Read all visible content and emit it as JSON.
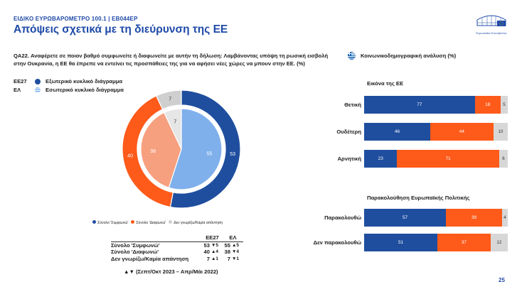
{
  "header": {
    "kicker": "ΕΙΔΙΚΟ ΕΥΡΩΒΑΡΟΜΕΤΡΟ 100.1 | EB044EP",
    "title": "Απόψεις σχετικά με τη διεύρυνση της ΕΕ",
    "logo_text": "Ευρωπαϊκό Κοινοβούλιο"
  },
  "question": "QA22. Αναφέρετε σε ποιον βαθμό συμφωνείτε ή διαφωνείτε με αυτήν τη δήλωση: Λαμβάνοντας υπόψη τη ρωσική εισβολή στην Ουκρανία, η ΕΕ θα έπρεπε να εντείνει τις προσπάθειες της για να αφήσει νέες χώρες να μπουν στην ΕΕ. (%)",
  "ring_legend": [
    {
      "code": "ΕΕ27",
      "text": "Εξωτερικό κυκλικό διάγραμμα"
    },
    {
      "code": "ΕΛ",
      "text": "Εσωτερικό κυκλικό διάγραμμα"
    }
  ],
  "socio_title": "Κοινωνικοδημογραφική ανάλυση (%)",
  "pie_legend": [
    "Σύνολο 'Συμφωνώ'",
    "Σύνολο 'Διαφωνώ'",
    "Δεν γνωρίζω/Καμία απάντηση"
  ],
  "colors": {
    "agree": "#1f4e9e",
    "disagree": "#fe5a1a",
    "dk": "#cfcfcf",
    "agree_inner": "#7fb0ec",
    "disagree_inner": "#f7a07f",
    "dk_inner": "#e6e6e6"
  },
  "table": {
    "headers": [
      "ΕΕ27",
      "ΕΛ"
    ],
    "rows": [
      {
        "label": "Σύνολο 'Συμφωνώ'",
        "eu": "53",
        "eu_trend": "▼5",
        "gr": "55",
        "gr_trend": "▲5"
      },
      {
        "label": "Σύνολο 'Διαφωνώ'",
        "eu": "40",
        "eu_trend": "▲4",
        "gr": "38",
        "gr_trend": "▼4"
      },
      {
        "label": "Δεν γνωρίζω/Καμία απάντηση",
        "eu": "7",
        "eu_trend": "▲1",
        "gr": "7",
        "gr_trend": "▼1"
      }
    ],
    "footnote": "▲▼ (Σεπτ/Οκτ 2023 – Απρ/Μάι 2022)"
  },
  "chart_data": [
    {
      "type": "pie",
      "subtype": "nested-donut",
      "series": [
        {
          "name": "ΕΕ27",
          "ring": "outer",
          "categories": [
            "Σύνολο 'Συμφωνώ'",
            "Σύνολο 'Διαφωνώ'",
            "Δεν γνωρίζω/Καμία απάντηση"
          ],
          "values": [
            53,
            40,
            7
          ]
        },
        {
          "name": "ΕΛ",
          "ring": "inner",
          "categories": [
            "Σύνολο 'Συμφωνώ'",
            "Σύνολο 'Διαφωνώ'",
            "Δεν γνωρίζω/Καμία απάντηση"
          ],
          "values": [
            55,
            38,
            7
          ]
        }
      ]
    },
    {
      "type": "bar",
      "orientation": "horizontal-stacked",
      "title": "Εικόνα της ΕΕ",
      "categories": [
        "Θετική",
        "Ουδέτερη",
        "Αρνητική"
      ],
      "series": [
        {
          "name": "Σύνολο 'Συμφωνώ'",
          "values": [
            77,
            46,
            23
          ]
        },
        {
          "name": "Σύνολο 'Διαφωνώ'",
          "values": [
            18,
            44,
            71
          ]
        },
        {
          "name": "Δεν γνωρίζω/Καμία απάντηση",
          "values": [
            5,
            10,
            6
          ]
        }
      ]
    },
    {
      "type": "bar",
      "orientation": "horizontal-stacked",
      "title": "Παρακολούθηση Ευρωπαϊκής Πολιτικής",
      "categories": [
        "Παρακολουθώ",
        "Δεν παρακολουθώ"
      ],
      "series": [
        {
          "name": "Σύνολο 'Συμφωνώ'",
          "values": [
            57,
            51
          ]
        },
        {
          "name": "Σύνολο 'Διαφωνώ'",
          "values": [
            39,
            37
          ]
        },
        {
          "name": "Δεν γνωρίζω/Καμία απάντηση",
          "values": [
            4,
            12
          ]
        }
      ]
    }
  ],
  "page_number": "25"
}
